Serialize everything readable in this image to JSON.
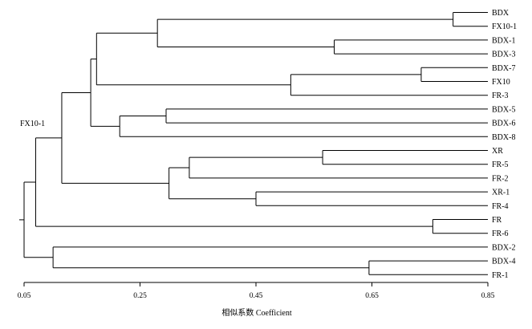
{
  "chart_data": {
    "type": "dendrogram",
    "orientation": "horizontal",
    "leaves": [
      "BDX",
      "FX10-1",
      "BDX-1",
      "BDX-3",
      "BDX-7",
      "FX10",
      "FR-3",
      "BDX-5",
      "BDX-6",
      "BDX-8",
      "XR",
      "FR-5",
      "FR-2",
      "XR-1",
      "FR-4",
      "FR",
      "FR-6",
      "BDX-2",
      "BDX-4",
      "FR-1"
    ],
    "root_label": "FX10-1",
    "x_axis": {
      "title": "相似系数 Coefficient",
      "range": [
        0.05,
        0.85
      ],
      "ticks": [
        0.05,
        0.25,
        0.45,
        0.65,
        0.85
      ],
      "tick_labels": [
        "0.05",
        "0.25",
        "0.45",
        "0.65",
        "0.85"
      ]
    },
    "merges": [
      {
        "id": "n1",
        "children": [
          "BDX",
          "FX10-1"
        ],
        "coefficient": 0.79
      },
      {
        "id": "n2",
        "children": [
          "BDX-1",
          "BDX-3"
        ],
        "coefficient": 0.585
      },
      {
        "id": "n3",
        "children": [
          "n1",
          "n2"
        ],
        "coefficient": 0.28
      },
      {
        "id": "n4",
        "children": [
          "BDX-7",
          "FX10"
        ],
        "coefficient": 0.735
      },
      {
        "id": "n5",
        "children": [
          "n4",
          "FR-3"
        ],
        "coefficient": 0.51
      },
      {
        "id": "n6",
        "children": [
          "n3",
          "n5"
        ],
        "coefficient": 0.175
      },
      {
        "id": "n7",
        "children": [
          "BDX-5",
          "BDX-6"
        ],
        "coefficient": 0.295
      },
      {
        "id": "n8",
        "children": [
          "n7",
          "BDX-8"
        ],
        "coefficient": 0.215
      },
      {
        "id": "n9",
        "children": [
          "n6",
          "n8"
        ],
        "coefficient": 0.165
      },
      {
        "id": "n10",
        "children": [
          "XR",
          "FR-5"
        ],
        "coefficient": 0.565
      },
      {
        "id": "n11",
        "children": [
          "n10",
          "FR-2"
        ],
        "coefficient": 0.335
      },
      {
        "id": "n12",
        "children": [
          "XR-1",
          "FR-4"
        ],
        "coefficient": 0.45
      },
      {
        "id": "n13",
        "children": [
          "n11",
          "n12"
        ],
        "coefficient": 0.3
      },
      {
        "id": "n14",
        "children": [
          "n9",
          "n13"
        ],
        "coefficient": 0.115
      },
      {
        "id": "n15",
        "children": [
          "FR",
          "FR-6"
        ],
        "coefficient": 0.755
      },
      {
        "id": "n16",
        "children": [
          "n14",
          "n15"
        ],
        "coefficient": 0.07
      },
      {
        "id": "n17",
        "children": [
          "BDX-4",
          "FR-1"
        ],
        "coefficient": 0.645
      },
      {
        "id": "n18",
        "children": [
          "BDX-2",
          "n17"
        ],
        "coefficient": 0.1
      },
      {
        "id": "n19",
        "children": [
          "n16",
          "n18"
        ],
        "coefficient": 0.05
      }
    ]
  }
}
